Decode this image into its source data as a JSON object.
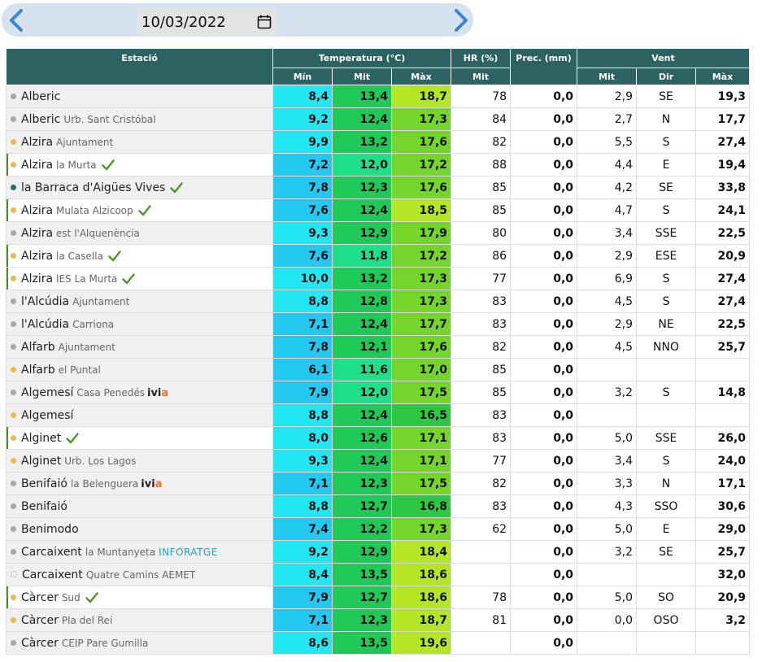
{
  "date": {
    "value": "10/03/2022"
  },
  "colors": {
    "header": "#2d6262",
    "dot_orange": "#f0b84a",
    "dot_gray": "#a8a8a8",
    "dot_teal": "#1f6f6a",
    "check": "#4a9a2a"
  },
  "headers": {
    "station": "Estació",
    "temperature": "Temperatura (°C)",
    "hr": "HR (%)",
    "prec": "Prec. (mm)",
    "wind": "Vent",
    "min": "Mín",
    "mit": "Mit",
    "max": "Màx",
    "hr_mit": "Mit",
    "wind_mit": "Mit",
    "wind_dir": "Dir",
    "wind_max": "Màx"
  },
  "rows": [
    {
      "name": "Alberic",
      "sub": "",
      "dot": "gray",
      "check": false,
      "hl": false,
      "logo": "",
      "tmin": "8,4",
      "tmit": "13,4",
      "tmax": "18,7",
      "hr": "78",
      "prec": "0,0",
      "wmit": "2,9",
      "wdir": "SE",
      "wmax": "19,3",
      "cmin": "#22e6f2",
      "cmit": "#1fc957",
      "cmax": "#b5e626"
    },
    {
      "name": "Alberic",
      "sub": "Urb. Sant Cristóbal",
      "dot": "gray",
      "check": false,
      "hl": false,
      "logo": "",
      "tmin": "9,2",
      "tmit": "12,4",
      "tmax": "17,3",
      "hr": "84",
      "prec": "0,0",
      "wmit": "2,7",
      "wdir": "N",
      "wmax": "17,7",
      "cmin": "#22e6f2",
      "cmit": "#1fc957",
      "cmax": "#76d52a"
    },
    {
      "name": "Alzira",
      "sub": "Ajuntament",
      "dot": "orange",
      "check": false,
      "hl": false,
      "logo": "",
      "tmin": "9,9",
      "tmit": "13,2",
      "tmax": "17,6",
      "hr": "82",
      "prec": "0,0",
      "wmit": "5,5",
      "wdir": "S",
      "wmax": "27,4",
      "cmin": "#22e6f2",
      "cmit": "#1fc957",
      "cmax": "#76d52a"
    },
    {
      "name": "Alzira",
      "sub": "la Murta",
      "dot": "orange",
      "check": true,
      "hl": true,
      "logo": "",
      "tmin": "7,2",
      "tmit": "12,0",
      "tmax": "17,2",
      "hr": "88",
      "prec": "0,0",
      "wmit": "4,4",
      "wdir": "E",
      "wmax": "19,4",
      "cmin": "#22c8f0",
      "cmit": "#1fe08a",
      "cmax": "#76d52a"
    },
    {
      "name": "la Barraca d'Aigües Vives",
      "sub": "",
      "dot": "teal",
      "check": true,
      "hl": false,
      "logo": "",
      "tmin": "7,8",
      "tmit": "12,3",
      "tmax": "17,6",
      "hr": "85",
      "prec": "0,0",
      "wmit": "4,2",
      "wdir": "SE",
      "wmax": "33,8",
      "cmin": "#22c8f0",
      "cmit": "#1fc957",
      "cmax": "#76d52a"
    },
    {
      "name": "Alzira",
      "sub": "Mulata Alzicoop",
      "dot": "orange",
      "check": true,
      "hl": true,
      "logo": "",
      "tmin": "7,6",
      "tmit": "12,4",
      "tmax": "18,5",
      "hr": "85",
      "prec": "0,0",
      "wmit": "4,7",
      "wdir": "S",
      "wmax": "24,1",
      "cmin": "#22c8f0",
      "cmit": "#1fc957",
      "cmax": "#b5e626"
    },
    {
      "name": "Alzira",
      "sub": "est l'Alquenència",
      "dot": "gray",
      "check": false,
      "hl": false,
      "logo": "",
      "tmin": "9,3",
      "tmit": "12,9",
      "tmax": "17,9",
      "hr": "80",
      "prec": "0,0",
      "wmit": "3,4",
      "wdir": "SSE",
      "wmax": "22,5",
      "cmin": "#22e6f2",
      "cmit": "#1fc957",
      "cmax": "#76d52a"
    },
    {
      "name": "Alzira",
      "sub": "la Casella",
      "dot": "orange",
      "check": true,
      "hl": true,
      "logo": "",
      "tmin": "7,6",
      "tmit": "11,8",
      "tmax": "17,2",
      "hr": "86",
      "prec": "0,0",
      "wmit": "2,9",
      "wdir": "ESE",
      "wmax": "20,9",
      "cmin": "#22c8f0",
      "cmit": "#1fe08a",
      "cmax": "#76d52a"
    },
    {
      "name": "Alzira",
      "sub": "IES La Murta",
      "dot": "orange",
      "check": true,
      "hl": true,
      "logo": "",
      "tmin": "10,0",
      "tmit": "13,2",
      "tmax": "17,3",
      "hr": "77",
      "prec": "0,0",
      "wmit": "6,9",
      "wdir": "S",
      "wmax": "27,4",
      "cmin": "#22e6f2",
      "cmit": "#1fc957",
      "cmax": "#76d52a"
    },
    {
      "name": "l'Alcúdia",
      "sub": "Ajuntament",
      "dot": "gray",
      "check": false,
      "hl": false,
      "logo": "",
      "tmin": "8,8",
      "tmit": "12,8",
      "tmax": "17,3",
      "hr": "83",
      "prec": "0,0",
      "wmit": "4,5",
      "wdir": "S",
      "wmax": "27,4",
      "cmin": "#22e6f2",
      "cmit": "#1fc957",
      "cmax": "#76d52a"
    },
    {
      "name": "l'Alcúdia",
      "sub": "Carriona",
      "dot": "gray",
      "check": false,
      "hl": false,
      "logo": "",
      "tmin": "7,1",
      "tmit": "12,4",
      "tmax": "17,7",
      "hr": "83",
      "prec": "0,0",
      "wmit": "2,9",
      "wdir": "NE",
      "wmax": "22,5",
      "cmin": "#22c8f0",
      "cmit": "#1fc957",
      "cmax": "#76d52a"
    },
    {
      "name": "Alfarb",
      "sub": "Ajuntament",
      "dot": "gray",
      "check": false,
      "hl": false,
      "logo": "",
      "tmin": "7,8",
      "tmit": "12,1",
      "tmax": "17,6",
      "hr": "82",
      "prec": "0,0",
      "wmit": "4,5",
      "wdir": "NNO",
      "wmax": "25,7",
      "cmin": "#22c8f0",
      "cmit": "#1fc957",
      "cmax": "#76d52a"
    },
    {
      "name": "Alfarb",
      "sub": "el Puntal",
      "dot": "orange",
      "check": false,
      "hl": false,
      "logo": "",
      "tmin": "6,1",
      "tmit": "11,6",
      "tmax": "17,0",
      "hr": "85",
      "prec": "0,0",
      "wmit": "",
      "wdir": "",
      "wmax": "",
      "cmin": "#22c8f0",
      "cmit": "#1fe08a",
      "cmax": "#76d52a"
    },
    {
      "name": "Algemesí",
      "sub": "Casa Penedés",
      "dot": "gray",
      "check": false,
      "hl": false,
      "logo": "ivia",
      "tmin": "7,9",
      "tmit": "12,0",
      "tmax": "17,5",
      "hr": "85",
      "prec": "0,0",
      "wmit": "3,2",
      "wdir": "S",
      "wmax": "14,8",
      "cmin": "#22c8f0",
      "cmit": "#1fe08a",
      "cmax": "#76d52a"
    },
    {
      "name": "Algemesí",
      "sub": "",
      "dot": "orange",
      "check": false,
      "hl": false,
      "logo": "",
      "tmin": "8,8",
      "tmit": "12,4",
      "tmax": "16,5",
      "hr": "83",
      "prec": "0,0",
      "wmit": "",
      "wdir": "",
      "wmax": "",
      "cmin": "#22e6f2",
      "cmit": "#1fc957",
      "cmax": "#2ec844"
    },
    {
      "name": "Alginet",
      "sub": "",
      "dot": "orange",
      "check": true,
      "hl": true,
      "logo": "",
      "tmin": "8,0",
      "tmit": "12,6",
      "tmax": "17,1",
      "hr": "83",
      "prec": "0,0",
      "wmit": "5,0",
      "wdir": "SSE",
      "wmax": "26,0",
      "cmin": "#22e6f2",
      "cmit": "#1fc957",
      "cmax": "#76d52a"
    },
    {
      "name": "Alginet",
      "sub": "Urb. Los Lagos",
      "dot": "orange",
      "check": false,
      "hl": false,
      "logo": "",
      "tmin": "9,3",
      "tmit": "12,4",
      "tmax": "17,1",
      "hr": "77",
      "prec": "0,0",
      "wmit": "3,4",
      "wdir": "S",
      "wmax": "24,0",
      "cmin": "#22e6f2",
      "cmit": "#1fc957",
      "cmax": "#76d52a"
    },
    {
      "name": "Benifaió",
      "sub": "la Belenguera",
      "dot": "gray",
      "check": false,
      "hl": false,
      "logo": "ivia",
      "tmin": "7,1",
      "tmit": "12,3",
      "tmax": "17,5",
      "hr": "82",
      "prec": "0,0",
      "wmit": "3,3",
      "wdir": "N",
      "wmax": "17,1",
      "cmin": "#22c8f0",
      "cmit": "#1fc957",
      "cmax": "#76d52a"
    },
    {
      "name": "Benifaió",
      "sub": "",
      "dot": "gray",
      "check": false,
      "hl": false,
      "logo": "",
      "tmin": "8,8",
      "tmit": "12,7",
      "tmax": "16,8",
      "hr": "83",
      "prec": "0,0",
      "wmit": "4,3",
      "wdir": "SSO",
      "wmax": "30,6",
      "cmin": "#22e6f2",
      "cmit": "#1fc957",
      "cmax": "#2ec844"
    },
    {
      "name": "Benimodo",
      "sub": "",
      "dot": "gray",
      "check": false,
      "hl": false,
      "logo": "",
      "tmin": "7,4",
      "tmit": "12,2",
      "tmax": "17,3",
      "hr": "62",
      "prec": "0,0",
      "wmit": "5,0",
      "wdir": "E",
      "wmax": "29,0",
      "cmin": "#22c8f0",
      "cmit": "#1fc957",
      "cmax": "#76d52a"
    },
    {
      "name": "Carcaixent",
      "sub": "la Muntanyeta",
      "dot": "gray",
      "check": false,
      "hl": false,
      "logo": "inforatge",
      "tmin": "9,2",
      "tmit": "12,9",
      "tmax": "18,4",
      "hr": "",
      "prec": "0,0",
      "wmit": "3,2",
      "wdir": "SE",
      "wmax": "25,7",
      "cmin": "#22e6f2",
      "cmit": "#1fc957",
      "cmax": "#b5e626"
    },
    {
      "name": "Carcaixent",
      "sub": "Quatre Camins AEMET",
      "dot": "empty",
      "check": false,
      "hl": false,
      "logo": "",
      "tmin": "8,4",
      "tmit": "13,5",
      "tmax": "18,6",
      "hr": "",
      "prec": "0,0",
      "wmit": "",
      "wdir": "",
      "wmax": "32,0",
      "cmin": "#22e6f2",
      "cmit": "#1fc957",
      "cmax": "#b5e626"
    },
    {
      "name": "Càrcer",
      "sub": "Sud",
      "dot": "orange",
      "check": true,
      "hl": true,
      "logo": "",
      "tmin": "7,9",
      "tmit": "12,7",
      "tmax": "18,6",
      "hr": "78",
      "prec": "0,0",
      "wmit": "5,0",
      "wdir": "SO",
      "wmax": "20,9",
      "cmin": "#22c8f0",
      "cmit": "#1fc957",
      "cmax": "#b5e626"
    },
    {
      "name": "Càrcer",
      "sub": "Pla del Rei",
      "dot": "orange",
      "check": false,
      "hl": false,
      "logo": "",
      "tmin": "7,1",
      "tmit": "12,3",
      "tmax": "18,7",
      "hr": "81",
      "prec": "0,0",
      "wmit": "0,0",
      "wdir": "OSO",
      "wmax": "3,2",
      "cmin": "#22c8f0",
      "cmit": "#1fc957",
      "cmax": "#b5e626"
    },
    {
      "name": "Càrcer",
      "sub": "CEIP Pare Gumilla",
      "dot": "gray",
      "check": false,
      "hl": false,
      "logo": "",
      "tmin": "8,6",
      "tmit": "13,5",
      "tmax": "19,6",
      "hr": "",
      "prec": "0,0",
      "wmit": "",
      "wdir": "",
      "wmax": "",
      "cmin": "#22e6f2",
      "cmit": "#1fc957",
      "cmax": "#b5e626"
    }
  ]
}
